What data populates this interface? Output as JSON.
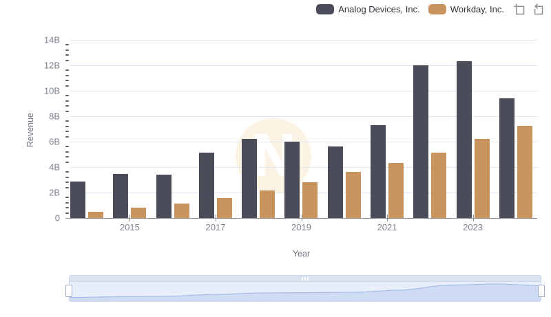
{
  "legend": {
    "items": [
      {
        "label": "Analog Devices, Inc.",
        "color": "#4a4d59"
      },
      {
        "label": "Workday, Inc.",
        "color": "#c9935e"
      }
    ],
    "toolbar": [
      {
        "name": "zoom-selection"
      },
      {
        "name": "reset-zoom"
      }
    ]
  },
  "chart_data": {
    "type": "bar",
    "title": "",
    "xlabel": "Year",
    "ylabel": "Revenue",
    "units": "billions USD",
    "ylim": [
      0,
      14
    ],
    "yticks": [
      {
        "v": 0,
        "label": "0"
      },
      {
        "v": 2,
        "label": "2B"
      },
      {
        "v": 4,
        "label": "4B"
      },
      {
        "v": 6,
        "label": "6B"
      },
      {
        "v": 8,
        "label": "8B"
      },
      {
        "v": 10,
        "label": "10B"
      },
      {
        "v": 12,
        "label": "12B"
      },
      {
        "v": 14,
        "label": "14B"
      }
    ],
    "minor_tick_step": 0.4,
    "categories": [
      2014,
      2015,
      2016,
      2017,
      2018,
      2019,
      2020,
      2021,
      2022,
      2023,
      2024
    ],
    "x_axis_labeled_years": [
      2015,
      2017,
      2019,
      2021,
      2023
    ],
    "series": [
      {
        "name": "Analog Devices, Inc.",
        "color": "#4a4d59",
        "values": [
          2.87,
          3.44,
          3.42,
          5.11,
          6.23,
          5.99,
          5.6,
          7.32,
          12.01,
          12.31,
          9.43
        ]
      },
      {
        "name": "Workday, Inc.",
        "color": "#c9935e",
        "values": [
          0.47,
          0.79,
          1.16,
          1.57,
          2.14,
          2.82,
          3.63,
          4.32,
          5.14,
          6.22,
          7.26
        ]
      }
    ],
    "legend_position": "top-right",
    "grid": "horizontal"
  },
  "watermark": {
    "letter": "N",
    "circle_color": "#fcf3e4"
  },
  "navigator": {
    "grip": "|||",
    "line_color": "#a5bde8",
    "fill_color": "#c9d6f3"
  }
}
